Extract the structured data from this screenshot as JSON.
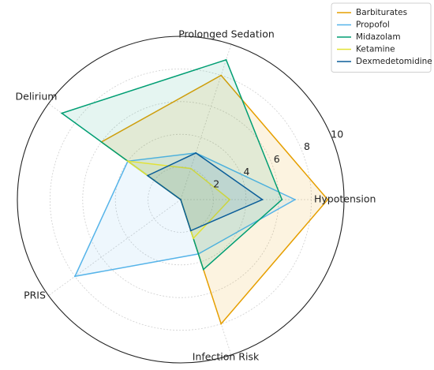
{
  "chart_data": {
    "type": "radar",
    "title": "",
    "axes": [
      "Hypotension",
      "Prolonged Sedation",
      "Delirium",
      "PRIS",
      "Infection Risk"
    ],
    "rmax": 10,
    "ticks": [
      2,
      4,
      6,
      8,
      10
    ],
    "grid": true,
    "legend_position": "top-right",
    "series": [
      {
        "name": "Barbiturates",
        "color": "#E69F00",
        "values": [
          9,
          8,
          6,
          0,
          8
        ],
        "fill_opacity": 0.12
      },
      {
        "name": "Propofol",
        "color": "#56B4E9",
        "values": [
          7,
          3,
          4,
          8,
          3.5
        ],
        "fill_opacity": 0.1
      },
      {
        "name": "Midazolam",
        "color": "#009E73",
        "values": [
          6.2,
          9,
          9,
          0,
          4.5
        ],
        "fill_opacity": 0.1
      },
      {
        "name": "Ketamine",
        "color": "#E2E236",
        "values": [
          3,
          2,
          4,
          0,
          2.5
        ],
        "fill_opacity": 0.1
      },
      {
        "name": "Dexmedetomidine",
        "color": "#0B5E99",
        "values": [
          5,
          3,
          2.5,
          0,
          2
        ],
        "fill_opacity": 0.1
      }
    ]
  }
}
